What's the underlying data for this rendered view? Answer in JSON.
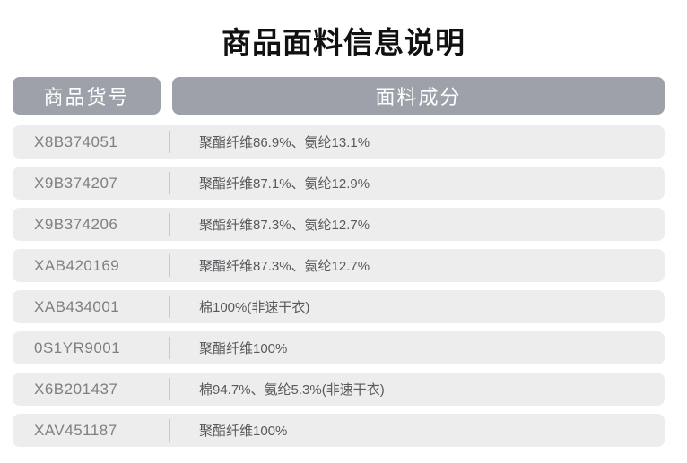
{
  "title": "商品面料信息说明",
  "table": {
    "columns": [
      {
        "label": "商品货号"
      },
      {
        "label": "面料成分"
      }
    ],
    "rows": [
      {
        "item_no": "X8B374051",
        "fabric": "聚酯纤维86.9%、氨纶13.1%"
      },
      {
        "item_no": "X9B374207",
        "fabric": "聚酯纤维87.1%、氨纶12.9%"
      },
      {
        "item_no": "X9B374206",
        "fabric": "聚酯纤维87.3%、氨纶12.7%"
      },
      {
        "item_no": "XAB420169",
        "fabric": "聚酯纤维87.3%、氨纶12.7%"
      },
      {
        "item_no": "XAB434001",
        "fabric": "棉100%(非速干衣)"
      },
      {
        "item_no": "0S1YR9001",
        "fabric": "聚酯纤维100%"
      },
      {
        "item_no": "X6B201437",
        "fabric": "棉94.7%、氨纶5.3%(非速干衣)"
      },
      {
        "item_no": "XAV451187",
        "fabric": "聚酯纤维100%"
      }
    ]
  },
  "colors": {
    "header_bg": "#9da2aa",
    "row_bg": "#ededed",
    "header_text": "#ffffff",
    "item_text": "#7d7f83",
    "fabric_text": "#58595c",
    "divider": "#c9c9c9",
    "title_text": "#111111"
  }
}
